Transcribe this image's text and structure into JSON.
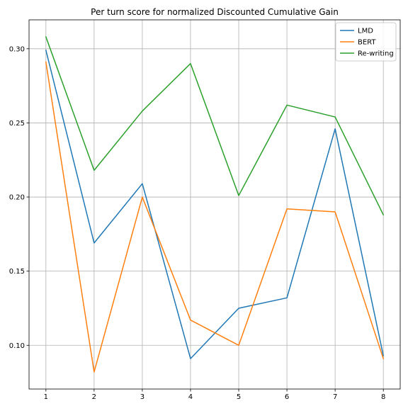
{
  "chart_data": {
    "type": "line",
    "title": "Per turn score for normalized Discounted Cumulative Gain",
    "xlabel": "",
    "ylabel": "",
    "x": [
      1,
      2,
      3,
      4,
      5,
      6,
      7,
      8
    ],
    "x_ticks": [
      "1",
      "2",
      "3",
      "4",
      "5",
      "6",
      "7",
      "8"
    ],
    "y_ticks": [
      "0.10",
      "0.15",
      "0.20",
      "0.25",
      "0.30"
    ],
    "y_tick_values": [
      0.1,
      0.15,
      0.2,
      0.25,
      0.3
    ],
    "xlim": [
      0.65,
      8.35
    ],
    "ylim": [
      0.0705,
      0.3195
    ],
    "grid": true,
    "legend_position": "top-right",
    "series": [
      {
        "name": "LMD",
        "color": "#1f77b4",
        "values": [
          0.299,
          0.169,
          0.209,
          0.091,
          0.125,
          0.132,
          0.246,
          0.093
        ]
      },
      {
        "name": "BERT",
        "color": "#ff7f0e",
        "values": [
          0.291,
          0.082,
          0.2,
          0.117,
          0.1,
          0.192,
          0.19,
          0.091
        ]
      },
      {
        "name": "Re-writing",
        "color": "#2ca02c",
        "values": [
          0.308,
          0.218,
          0.258,
          0.29,
          0.201,
          0.262,
          0.254,
          0.188
        ]
      }
    ]
  }
}
